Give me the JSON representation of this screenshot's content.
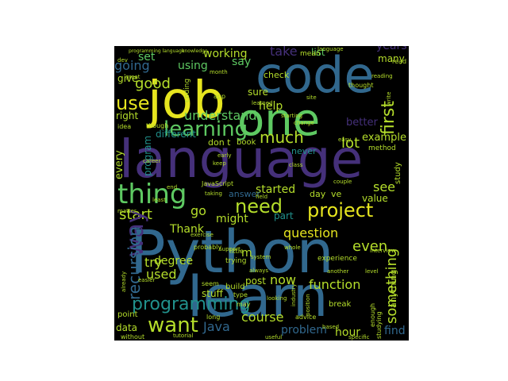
{
  "palette": {
    "dark-purple": "#45307a",
    "blue": "#31688e",
    "teal": "#21918c",
    "green": "#5ec962",
    "lime": "#b5de2b",
    "yellow": "#e6e51f"
  },
  "words": [
    {
      "text": "language",
      "color": "#45307a"
    },
    {
      "text": "Python",
      "color": "#31688e"
    },
    {
      "text": "learn",
      "color": "#31688e"
    },
    {
      "text": "code",
      "color": "#31688e"
    },
    {
      "text": "job",
      "color": "#e6e51f"
    },
    {
      "text": "one",
      "color": "#5ec962"
    },
    {
      "text": "thing",
      "color": "#5ec962"
    },
    {
      "text": "learning",
      "color": "#5ec962"
    },
    {
      "text": "project",
      "color": "#e6e51f"
    },
    {
      "text": "need",
      "color": "#b5de2b"
    },
    {
      "text": "programming",
      "color": "#21918c"
    },
    {
      "text": "want",
      "color": "#b5de2b"
    },
    {
      "text": "use",
      "color": "#e6e51f"
    },
    {
      "text": "question",
      "color": "#e6e51f"
    },
    {
      "text": "something",
      "color": "#b5de2b"
    },
    {
      "text": "much",
      "color": "#b5de2b"
    },
    {
      "text": "first",
      "color": "#b5de2b"
    },
    {
      "text": "good",
      "color": "#b5de2b"
    },
    {
      "text": "function",
      "color": "#b5de2b"
    },
    {
      "text": "course",
      "color": "#b5de2b"
    },
    {
      "text": "problem",
      "color": "#31688e"
    },
    {
      "text": "even",
      "color": "#b5de2b"
    },
    {
      "text": "lot",
      "color": "#b5de2b"
    },
    {
      "text": "working",
      "color": "#b5de2b"
    },
    {
      "text": "understand",
      "color": "#5ec962"
    },
    {
      "text": "example",
      "color": "#b5de2b"
    },
    {
      "text": "started",
      "color": "#b5de2b"
    },
    {
      "text": "start",
      "color": "#b5de2b"
    },
    {
      "text": "Java",
      "color": "#31688e"
    },
    {
      "text": "try",
      "color": "#b5de2b"
    },
    {
      "text": "help",
      "color": "#b5de2b"
    },
    {
      "text": "used",
      "color": "#b5de2b"
    },
    {
      "text": "see",
      "color": "#b5de2b"
    },
    {
      "text": "now",
      "color": "#b5de2b"
    },
    {
      "text": "hour",
      "color": "#b5de2b"
    },
    {
      "text": "way",
      "color": "#45307a"
    },
    {
      "text": "go",
      "color": "#b5de2b"
    },
    {
      "text": "Thank",
      "color": "#b5de2b"
    },
    {
      "text": "might",
      "color": "#b5de2b"
    },
    {
      "text": "find",
      "color": "#31688e"
    },
    {
      "text": "recursion",
      "color": "#31688e"
    },
    {
      "text": "set",
      "color": "#5ec962"
    },
    {
      "text": "using",
      "color": "#5ec962"
    },
    {
      "text": "say",
      "color": "#5ec962"
    },
    {
      "text": "take",
      "color": "#45307a"
    },
    {
      "text": "list",
      "color": "#5ec962"
    },
    {
      "text": "many",
      "color": "#b5de2b"
    },
    {
      "text": "years",
      "color": "#45307a"
    },
    {
      "text": "going",
      "color": "#31688e"
    },
    {
      "text": "give",
      "color": "#b5de2b"
    },
    {
      "text": "right",
      "color": "#b5de2b"
    },
    {
      "text": "sure",
      "color": "#b5de2b"
    },
    {
      "text": "check",
      "color": "#b5de2b"
    },
    {
      "text": "value",
      "color": "#b5de2b"
    },
    {
      "text": "day",
      "color": "#b5de2b"
    },
    {
      "text": "ve",
      "color": "#b5de2b"
    },
    {
      "text": "degree",
      "color": "#b5de2b"
    },
    {
      "text": "data",
      "color": "#b5de2b"
    },
    {
      "text": "post",
      "color": "#b5de2b"
    },
    {
      "text": "stuff",
      "color": "#b5de2b"
    },
    {
      "text": "part",
      "color": "#21918c"
    },
    {
      "text": "never",
      "color": "#21918c"
    },
    {
      "text": "don t",
      "color": "#b5de2b"
    },
    {
      "text": "book",
      "color": "#b5de2b"
    },
    {
      "text": "different",
      "color": "#21918c"
    },
    {
      "text": "every",
      "color": "#b5de2b"
    },
    {
      "text": "program",
      "color": "#21918c"
    },
    {
      "text": "study",
      "color": "#b5de2b"
    },
    {
      "text": "answer",
      "color": "#31688e"
    },
    {
      "text": "m",
      "color": "#b5de2b"
    },
    {
      "text": "experience",
      "color": "#b5de2b"
    },
    {
      "text": "anything",
      "color": "#b5de2b"
    },
    {
      "text": "better",
      "color": "#45307a"
    },
    {
      "text": "coding",
      "color": "#b5de2b"
    },
    {
      "text": "app",
      "color": "#b5de2b"
    },
    {
      "text": "mean",
      "color": "#b5de2b"
    },
    {
      "text": "method",
      "color": "#b5de2b"
    },
    {
      "text": "trying",
      "color": "#b5de2b"
    },
    {
      "text": "JavaScript",
      "color": "#b5de2b"
    },
    {
      "text": "probably",
      "color": "#b5de2b"
    },
    {
      "text": "build",
      "color": "#b5de2b"
    },
    {
      "text": "seem",
      "color": "#b5de2b"
    },
    {
      "text": "enough",
      "color": "#b5de2b"
    },
    {
      "text": "little",
      "color": "#b5de2b"
    },
    {
      "text": "without",
      "color": "#b5de2b"
    },
    {
      "text": "point",
      "color": "#b5de2b"
    },
    {
      "text": "long",
      "color": "#b5de2b"
    },
    {
      "text": "type",
      "color": "#b5de2b"
    },
    {
      "text": "may",
      "color": "#b5de2b"
    },
    {
      "text": "break",
      "color": "#b5de2b"
    },
    {
      "text": "studying",
      "color": "#b5de2b"
    },
    {
      "text": "advice",
      "color": "#b5de2b"
    },
    {
      "text": "thought",
      "color": "#b5de2b"
    },
    {
      "text": "idea",
      "color": "#b5de2b"
    },
    {
      "text": "though",
      "color": "#b5de2b"
    },
    {
      "text": "read",
      "color": "#b5de2b"
    },
    {
      "text": "write",
      "color": "#b5de2b"
    },
    {
      "text": "dev",
      "color": "#b5de2b"
    },
    {
      "text": "great",
      "color": "#b5de2b"
    },
    {
      "text": "month",
      "color": "#b5de2b"
    },
    {
      "text": "learned",
      "color": "#b5de2b"
    },
    {
      "text": "field",
      "color": "#b5de2b"
    },
    {
      "text": "class",
      "color": "#b5de2b"
    },
    {
      "text": "couple",
      "color": "#b5de2b"
    },
    {
      "text": "always",
      "color": "#b5de2b"
    },
    {
      "text": "another",
      "color": "#b5de2b"
    },
    {
      "text": "industry",
      "color": "#b5de2b"
    },
    {
      "text": "easier",
      "color": "#b5de2b"
    },
    {
      "text": "already",
      "color": "#b5de2b"
    },
    {
      "text": "end",
      "color": "#b5de2b"
    },
    {
      "text": "least",
      "color": "#b5de2b"
    },
    {
      "text": "matter",
      "color": "#b5de2b"
    },
    {
      "text": "support",
      "color": "#b5de2b"
    },
    {
      "text": "whole",
      "color": "#b5de2b"
    },
    {
      "text": "looking",
      "color": "#b5de2b"
    },
    {
      "text": "level",
      "color": "#b5de2b"
    },
    {
      "text": "tutorial",
      "color": "#b5de2b"
    },
    {
      "text": "career",
      "color": "#b5de2b"
    },
    {
      "text": "taking",
      "color": "#b5de2b"
    },
    {
      "text": "early",
      "color": "#b5de2b"
    },
    {
      "text": "system",
      "color": "#b5de2b"
    },
    {
      "text": "exercise",
      "color": "#b5de2b"
    },
    {
      "text": "change",
      "color": "#b5de2b"
    },
    {
      "text": "language",
      "color": "#b5de2b"
    },
    {
      "text": "programming language",
      "color": "#b5de2b"
    },
    {
      "text": "site",
      "color": "#b5de2b"
    },
    {
      "text": "knowledge",
      "color": "#b5de2b"
    },
    {
      "text": "starting",
      "color": "#b5de2b"
    },
    {
      "text": "reading",
      "color": "#b5de2b"
    },
    {
      "text": "easy",
      "color": "#b5de2b"
    },
    {
      "text": "keep",
      "color": "#b5de2b"
    },
    {
      "text": "based",
      "color": "#b5de2b"
    },
    {
      "text": "position",
      "color": "#b5de2b"
    },
    {
      "text": "specific",
      "color": "#b5de2b"
    },
    {
      "text": "useful",
      "color": "#b5de2b"
    },
    {
      "text": "interview",
      "color": "#b5de2b"
    }
  ]
}
